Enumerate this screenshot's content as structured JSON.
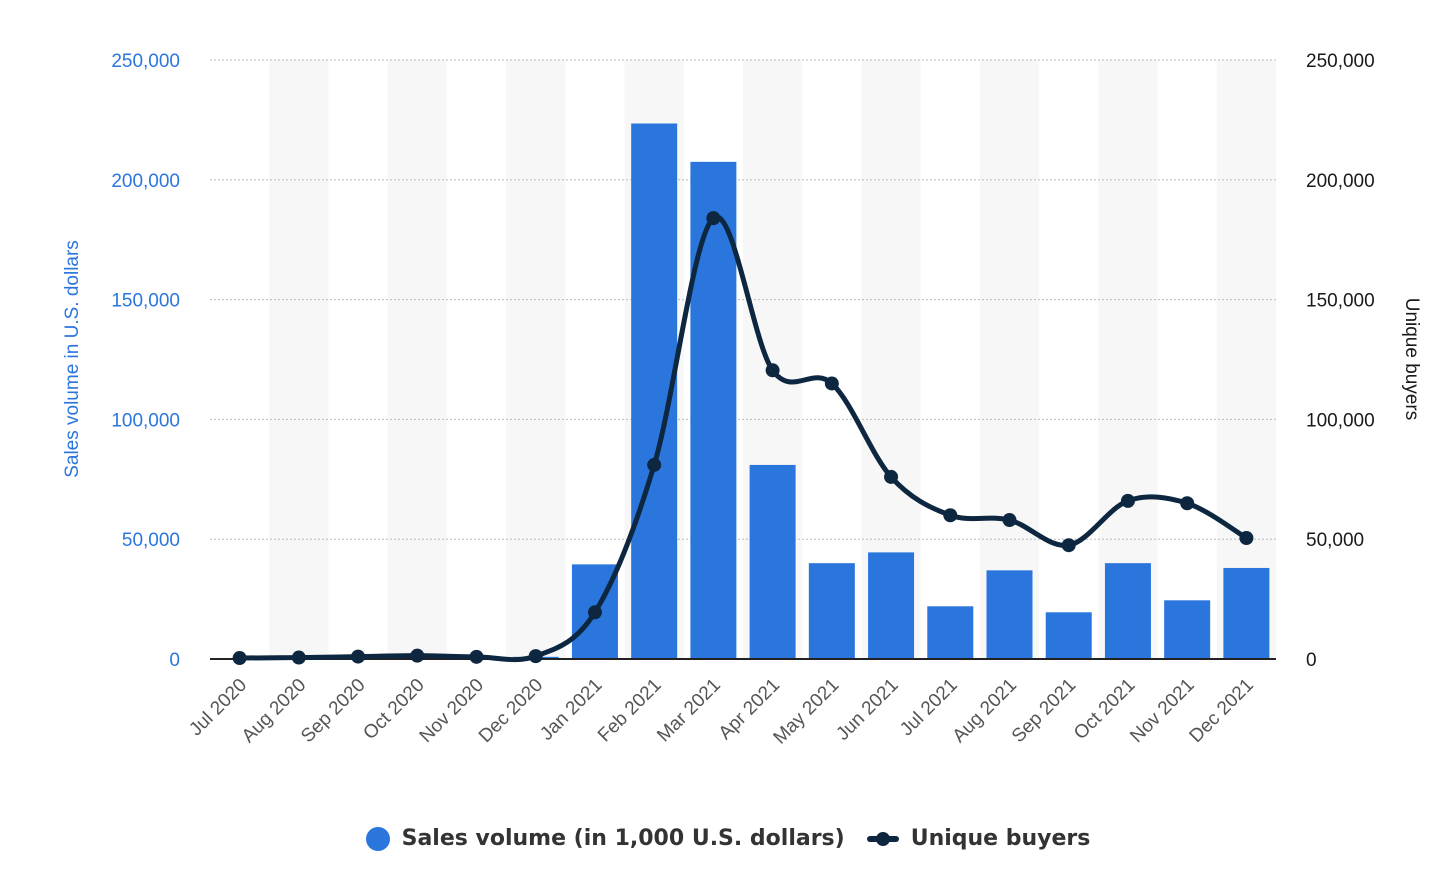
{
  "chart_data": {
    "type": "bar",
    "categories": [
      "Jul 2020",
      "Aug 2020",
      "Sep 2020",
      "Oct 2020",
      "Nov 2020",
      "Dec 2020",
      "Jan 2021",
      "Feb 2021",
      "Mar 2021",
      "Apr 2021",
      "May 2021",
      "Jun 2021",
      "Jul 2021",
      "Aug 2021",
      "Sep 2021",
      "Oct 2021",
      "Nov 2021",
      "Dec 2021"
    ],
    "series": [
      {
        "name": "Sales volume (in 1,000 U.S. dollars)",
        "type": "bar",
        "axis": "left",
        "color": "#2a76dd",
        "values": [
          300,
          500,
          800,
          1000,
          700,
          900,
          39500,
          223500,
          207500,
          81000,
          40000,
          44500,
          22000,
          37000,
          19500,
          40000,
          24500,
          38000
        ]
      },
      {
        "name": "Unique buyers",
        "type": "line",
        "axis": "right",
        "color": "#0e2740",
        "values": [
          400,
          600,
          1000,
          1400,
          900,
          1200,
          19500,
          81000,
          184000,
          120500,
          115000,
          76000,
          60000,
          58000,
          47500,
          66000,
          65000,
          50500
        ]
      }
    ],
    "ylabel": "Sales volume in U.S. dollars",
    "y2label": "Unique buyers",
    "ylim": [
      0,
      250000
    ],
    "y2lim": [
      0,
      250000
    ],
    "yticks": [
      "0",
      "50,000",
      "100,000",
      "150,000",
      "200,000",
      "250,000"
    ],
    "y2ticks": [
      "0",
      "50,000",
      "100,000",
      "150,000",
      "200,000",
      "250,000"
    ],
    "grid": true,
    "legend_position": "bottom-center"
  }
}
